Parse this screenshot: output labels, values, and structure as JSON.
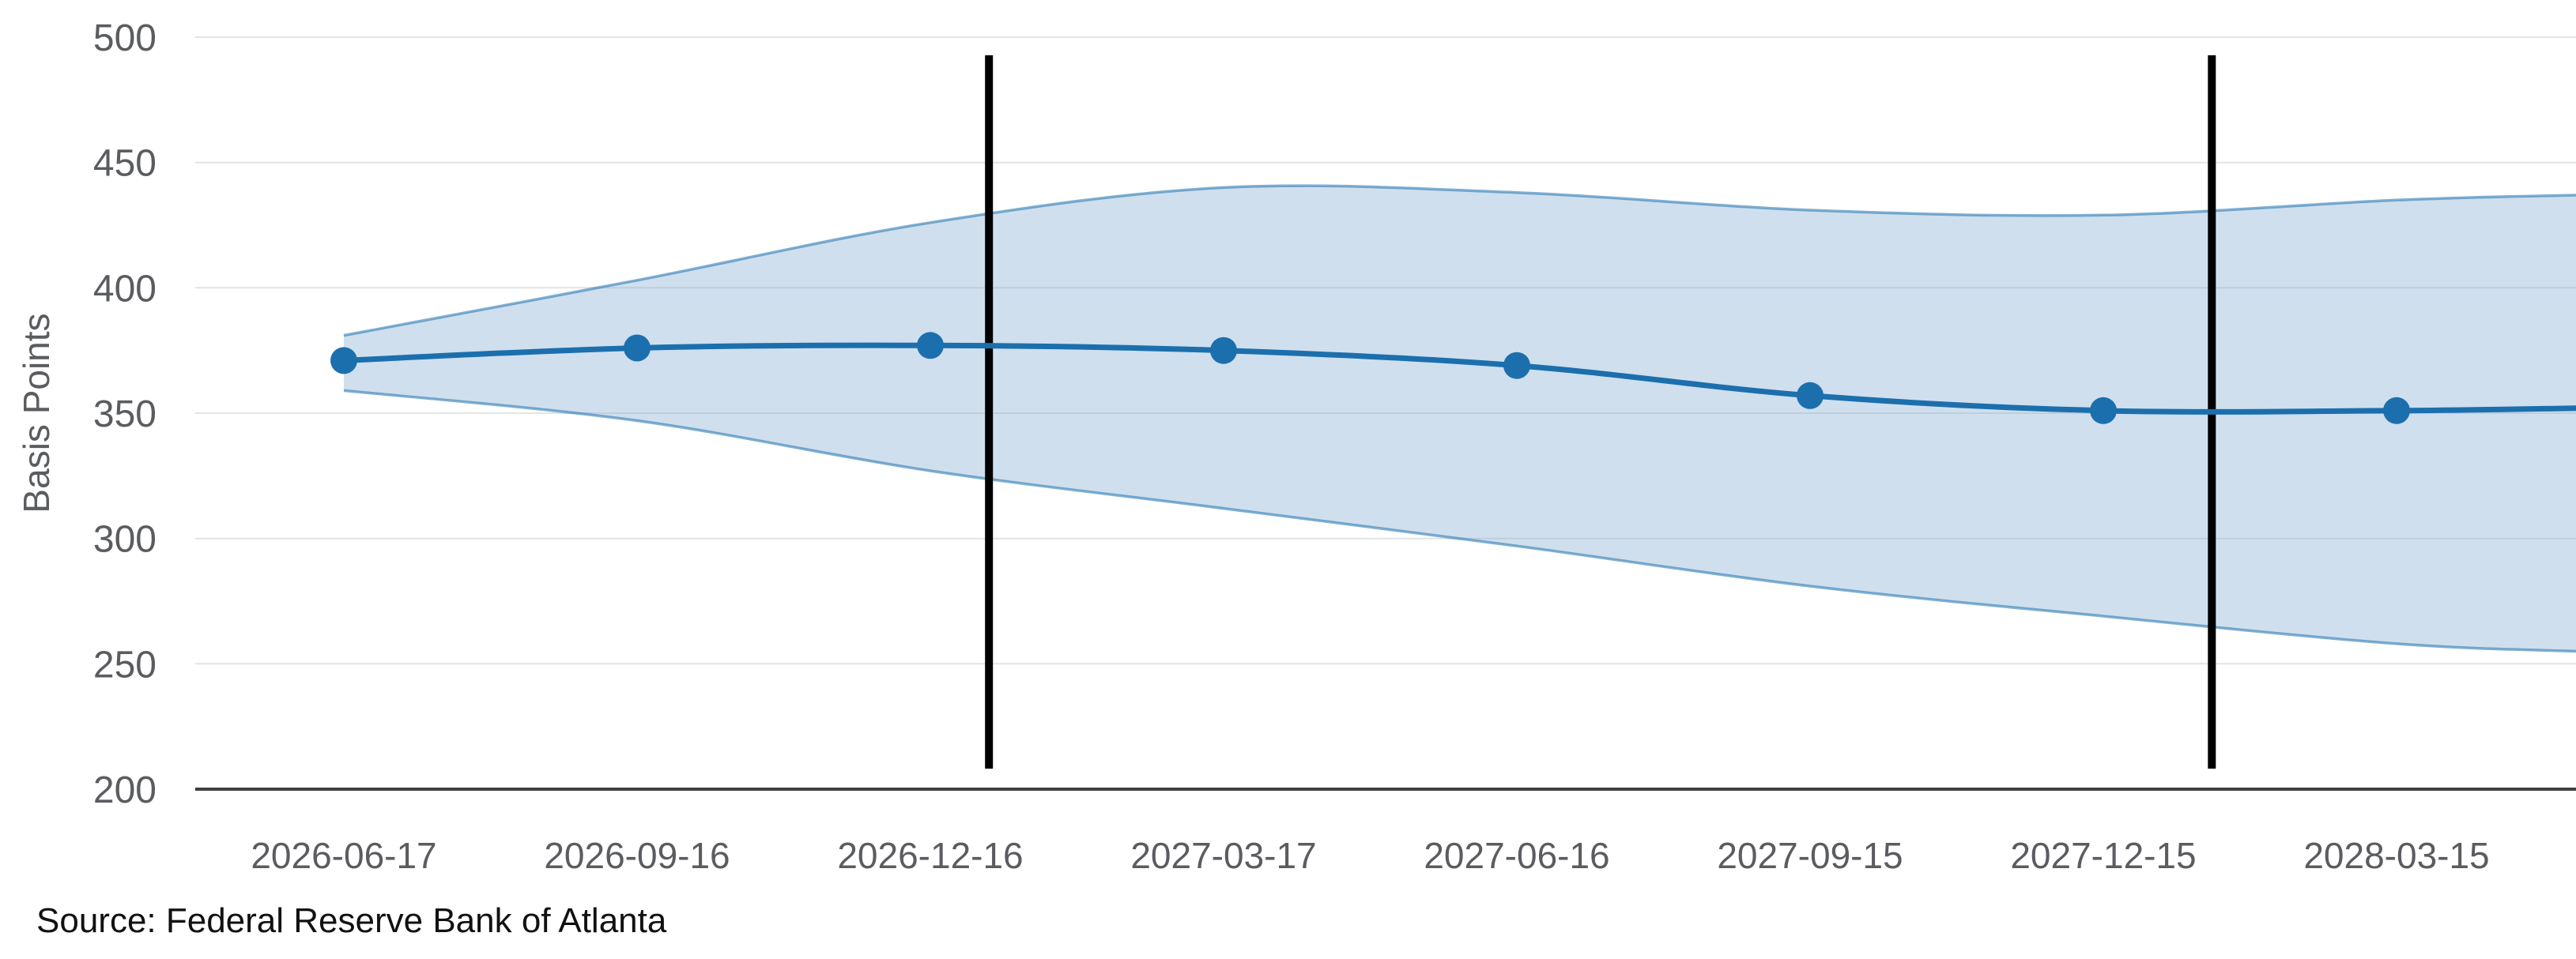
{
  "chart_data": {
    "type": "line",
    "title": "",
    "ylabel": "Basis Points",
    "x_tick_labels": [
      "2026-06-17",
      "2026-09-16",
      "2026-12-16",
      "2027-03-17",
      "2027-06-16",
      "2027-09-15",
      "2027-12-15",
      "2028-03-15"
    ],
    "y_ticks": [
      200,
      250,
      300,
      350,
      400,
      450,
      500
    ],
    "ylim": [
      200,
      500
    ],
    "grid": true,
    "legend_position": "none",
    "series": [
      {
        "name": "expected-rate-median",
        "style": "line-with-markers",
        "values": [
          371,
          376,
          377,
          375,
          369,
          357,
          351,
          351
        ],
        "right_edge_value": 352
      },
      {
        "name": "probability-band-upper",
        "style": "band-edge",
        "values": [
          381,
          403,
          426,
          440,
          438,
          431,
          429,
          435
        ],
        "right_edge_value": 437
      },
      {
        "name": "probability-band-lower",
        "style": "band-edge",
        "values": [
          359,
          347,
          327,
          312,
          297,
          281,
          269,
          258
        ],
        "right_edge_value": 255
      }
    ],
    "event_marker_lines_x_index": [
      2.2,
      6.37
    ]
  },
  "source_note": "Source: Federal Reserve Bank of Atlanta",
  "colors": {
    "line": "#1c6fad",
    "point": "#1c6fad",
    "band_fill": "rgba(128,172,211,0.38)",
    "band_edge": "rgba(28,111,173,0.55)",
    "grid": "#e4e4e4",
    "axis": "#3f3f3f",
    "tick_text": "#5a5c60",
    "source_text": "#111111",
    "marker_line": "#000000"
  }
}
